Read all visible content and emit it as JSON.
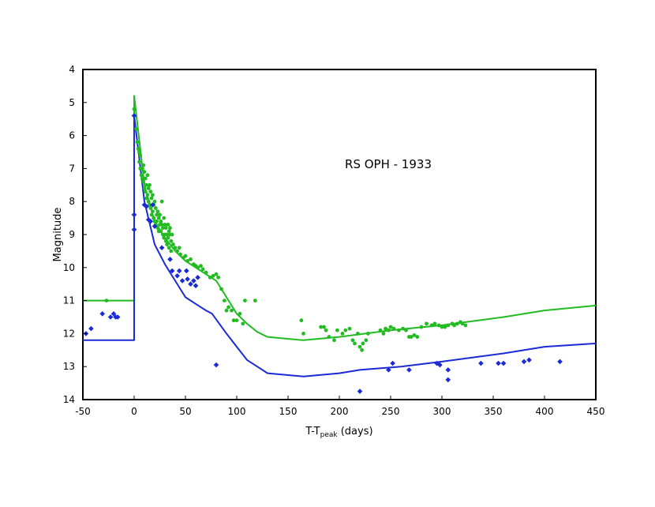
{
  "chart_data": {
    "type": "scatter",
    "annotation": "RS OPH - 1933",
    "xlabel": {
      "main": "T-T",
      "sub": "peak",
      "suffix": " (days)"
    },
    "ylabel": "Magnitude",
    "xlim": [
      -50,
      450
    ],
    "ylim": [
      4,
      14
    ],
    "y_inverted": true,
    "xticks": [
      -50,
      0,
      50,
      100,
      150,
      200,
      250,
      300,
      350,
      400,
      450
    ],
    "yticks": [
      4,
      5,
      6,
      7,
      8,
      9,
      10,
      11,
      12,
      13,
      14
    ],
    "grid": false,
    "legend": "none",
    "colors": {
      "green": "#22bb22",
      "blue": "#1a2ad6",
      "frame": "#000000"
    },
    "series": [
      {
        "marker": "line",
        "color": "#22bb22",
        "points": [
          [
            -50,
            11.0
          ],
          [
            0,
            11.0
          ],
          [
            0,
            4.8
          ],
          [
            10,
            7.5
          ],
          [
            20,
            8.6
          ],
          [
            30,
            9.1
          ],
          [
            40,
            9.5
          ],
          [
            50,
            9.8
          ],
          [
            60,
            10.0
          ],
          [
            70,
            10.2
          ],
          [
            80,
            10.4
          ],
          [
            90,
            10.9
          ],
          [
            100,
            11.4
          ],
          [
            110,
            11.7
          ],
          [
            120,
            11.95
          ],
          [
            130,
            12.1
          ],
          [
            165,
            12.2
          ],
          [
            200,
            12.1
          ],
          [
            250,
            11.9
          ],
          [
            300,
            11.75
          ],
          [
            360,
            11.5
          ],
          [
            400,
            11.3
          ],
          [
            450,
            11.15
          ]
        ]
      },
      {
        "marker": "line",
        "color": "#1a2ad6",
        "points": [
          [
            -50,
            12.2
          ],
          [
            0,
            12.2
          ],
          [
            0,
            5.4
          ],
          [
            10,
            8.0
          ],
          [
            20,
            9.3
          ],
          [
            30,
            9.9
          ],
          [
            40,
            10.4
          ],
          [
            50,
            10.9
          ],
          [
            60,
            11.1
          ],
          [
            70,
            11.3
          ],
          [
            76,
            11.4
          ],
          [
            90,
            12.0
          ],
          [
            100,
            12.4
          ],
          [
            110,
            12.8
          ],
          [
            120,
            13.0
          ],
          [
            130,
            13.2
          ],
          [
            165,
            13.3
          ],
          [
            200,
            13.2
          ],
          [
            220,
            13.1
          ],
          [
            260,
            13.0
          ],
          [
            300,
            12.85
          ],
          [
            360,
            12.6
          ],
          [
            400,
            12.4
          ],
          [
            450,
            12.3
          ]
        ]
      },
      {
        "marker": "dot",
        "color": "#22bb22",
        "points": [
          [
            -27,
            11.0
          ],
          [
            0,
            5.2
          ],
          [
            2,
            5.8
          ],
          [
            3,
            6.2
          ],
          [
            4,
            6.4
          ],
          [
            5,
            6.5
          ],
          [
            5,
            6.8
          ],
          [
            6,
            6.6
          ],
          [
            6,
            7.0
          ],
          [
            7,
            7.2
          ],
          [
            8,
            7.0
          ],
          [
            8,
            7.3
          ],
          [
            9,
            6.9
          ],
          [
            9,
            7.4
          ],
          [
            10,
            7.1
          ],
          [
            10,
            7.6
          ],
          [
            11,
            7.3
          ],
          [
            11,
            7.7
          ],
          [
            12,
            7.5
          ],
          [
            12,
            7.9
          ],
          [
            13,
            7.2
          ],
          [
            13,
            7.8
          ],
          [
            14,
            7.6
          ],
          [
            14,
            8.0
          ],
          [
            15,
            7.5
          ],
          [
            15,
            8.1
          ],
          [
            16,
            7.7
          ],
          [
            16,
            8.2
          ],
          [
            17,
            7.9
          ],
          [
            17,
            8.4
          ],
          [
            18,
            7.8
          ],
          [
            18,
            8.3
          ],
          [
            19,
            8.1
          ],
          [
            19,
            8.5
          ],
          [
            20,
            8.0
          ],
          [
            20,
            8.6
          ],
          [
            21,
            8.2
          ],
          [
            21,
            8.7
          ],
          [
            22,
            8.4
          ],
          [
            22,
            8.6
          ],
          [
            23,
            8.3
          ],
          [
            23,
            8.8
          ],
          [
            24,
            8.5
          ],
          [
            24,
            8.9
          ],
          [
            25,
            8.4
          ],
          [
            25,
            8.7
          ],
          [
            26,
            8.6
          ],
          [
            26,
            8.9
          ],
          [
            27,
            8.0
          ],
          [
            27,
            8.7
          ],
          [
            28,
            8.8
          ],
          [
            28,
            9.0
          ],
          [
            29,
            8.5
          ],
          [
            29,
            9.1
          ],
          [
            30,
            8.7
          ],
          [
            30,
            9.0
          ],
          [
            31,
            8.8
          ],
          [
            31,
            9.2
          ],
          [
            32,
            9.0
          ],
          [
            32,
            9.3
          ],
          [
            33,
            8.7
          ],
          [
            33,
            9.1
          ],
          [
            34,
            8.9
          ],
          [
            34,
            9.4
          ],
          [
            35,
            8.8
          ],
          [
            35,
            9.0
          ],
          [
            36,
            9.2
          ],
          [
            36,
            9.5
          ],
          [
            37,
            9.0
          ],
          [
            38,
            9.3
          ],
          [
            40,
            9.4
          ],
          [
            42,
            9.5
          ],
          [
            44,
            9.4
          ],
          [
            45,
            9.6
          ],
          [
            48,
            9.7
          ],
          [
            50,
            9.65
          ],
          [
            52,
            9.8
          ],
          [
            55,
            9.75
          ],
          [
            58,
            9.9
          ],
          [
            60,
            9.95
          ],
          [
            62,
            10.0
          ],
          [
            65,
            9.95
          ],
          [
            67,
            10.05
          ],
          [
            70,
            10.15
          ],
          [
            74,
            10.3
          ],
          [
            77,
            10.25
          ],
          [
            80,
            10.2
          ],
          [
            82,
            10.3
          ],
          [
            85,
            10.65
          ],
          [
            88,
            11.0
          ],
          [
            90,
            11.3
          ],
          [
            92,
            11.2
          ],
          [
            95,
            11.3
          ],
          [
            97,
            11.6
          ],
          [
            100,
            11.6
          ],
          [
            103,
            11.4
          ],
          [
            106,
            11.7
          ],
          [
            108,
            11.0
          ],
          [
            118,
            11.0
          ],
          [
            163,
            11.6
          ],
          [
            165,
            12.0
          ],
          [
            182,
            11.8
          ],
          [
            185,
            11.8
          ],
          [
            187,
            11.9
          ],
          [
            190,
            12.1
          ],
          [
            195,
            12.2
          ],
          [
            198,
            11.9
          ],
          [
            203,
            12.0
          ],
          [
            206,
            11.9
          ],
          [
            210,
            11.85
          ],
          [
            213,
            12.2
          ],
          [
            215,
            12.3
          ],
          [
            218,
            12.0
          ],
          [
            220,
            12.4
          ],
          [
            222,
            12.5
          ],
          [
            223,
            12.3
          ],
          [
            226,
            12.2
          ],
          [
            228,
            12.0
          ],
          [
            240,
            11.9
          ],
          [
            243,
            12.0
          ],
          [
            245,
            11.85
          ],
          [
            248,
            11.9
          ],
          [
            250,
            11.8
          ],
          [
            253,
            11.85
          ],
          [
            258,
            11.9
          ],
          [
            262,
            11.85
          ],
          [
            265,
            11.9
          ],
          [
            268,
            12.1
          ],
          [
            270,
            12.1
          ],
          [
            273,
            12.05
          ],
          [
            276,
            12.1
          ],
          [
            280,
            11.8
          ],
          [
            285,
            11.7
          ],
          [
            290,
            11.75
          ],
          [
            293,
            11.7
          ],
          [
            297,
            11.75
          ],
          [
            300,
            11.8
          ],
          [
            303,
            11.8
          ],
          [
            306,
            11.75
          ],
          [
            310,
            11.7
          ],
          [
            312,
            11.75
          ],
          [
            315,
            11.7
          ],
          [
            318,
            11.65
          ],
          [
            320,
            11.7
          ],
          [
            323,
            11.75
          ]
        ]
      },
      {
        "marker": "diamond",
        "color": "#1a2ad6",
        "points": [
          [
            -47,
            12.0
          ],
          [
            -42,
            11.85
          ],
          [
            -31,
            11.4
          ],
          [
            -23,
            11.5
          ],
          [
            -20,
            11.4
          ],
          [
            -18,
            11.5
          ],
          [
            -16,
            11.5
          ],
          [
            0,
            5.4
          ],
          [
            0,
            8.4
          ],
          [
            0,
            8.85
          ],
          [
            10,
            8.1
          ],
          [
            12,
            8.15
          ],
          [
            14,
            8.55
          ],
          [
            16,
            8.6
          ],
          [
            18,
            8.1
          ],
          [
            20,
            8.75
          ],
          [
            27,
            9.4
          ],
          [
            35,
            9.75
          ],
          [
            37,
            10.1
          ],
          [
            42,
            10.25
          ],
          [
            44,
            10.1
          ],
          [
            47,
            10.4
          ],
          [
            51,
            10.1
          ],
          [
            52,
            10.35
          ],
          [
            55,
            10.5
          ],
          [
            58,
            10.4
          ],
          [
            60,
            10.55
          ],
          [
            62,
            10.3
          ],
          [
            80,
            12.95
          ],
          [
            220,
            13.75
          ],
          [
            248,
            13.1
          ],
          [
            252,
            12.9
          ],
          [
            268,
            13.1
          ],
          [
            295,
            12.9
          ],
          [
            298,
            12.95
          ],
          [
            306,
            13.1
          ],
          [
            306,
            13.4
          ],
          [
            338,
            12.9
          ],
          [
            355,
            12.9
          ],
          [
            360,
            12.9
          ],
          [
            380,
            12.85
          ],
          [
            385,
            12.8
          ],
          [
            415,
            12.85
          ]
        ]
      }
    ]
  }
}
